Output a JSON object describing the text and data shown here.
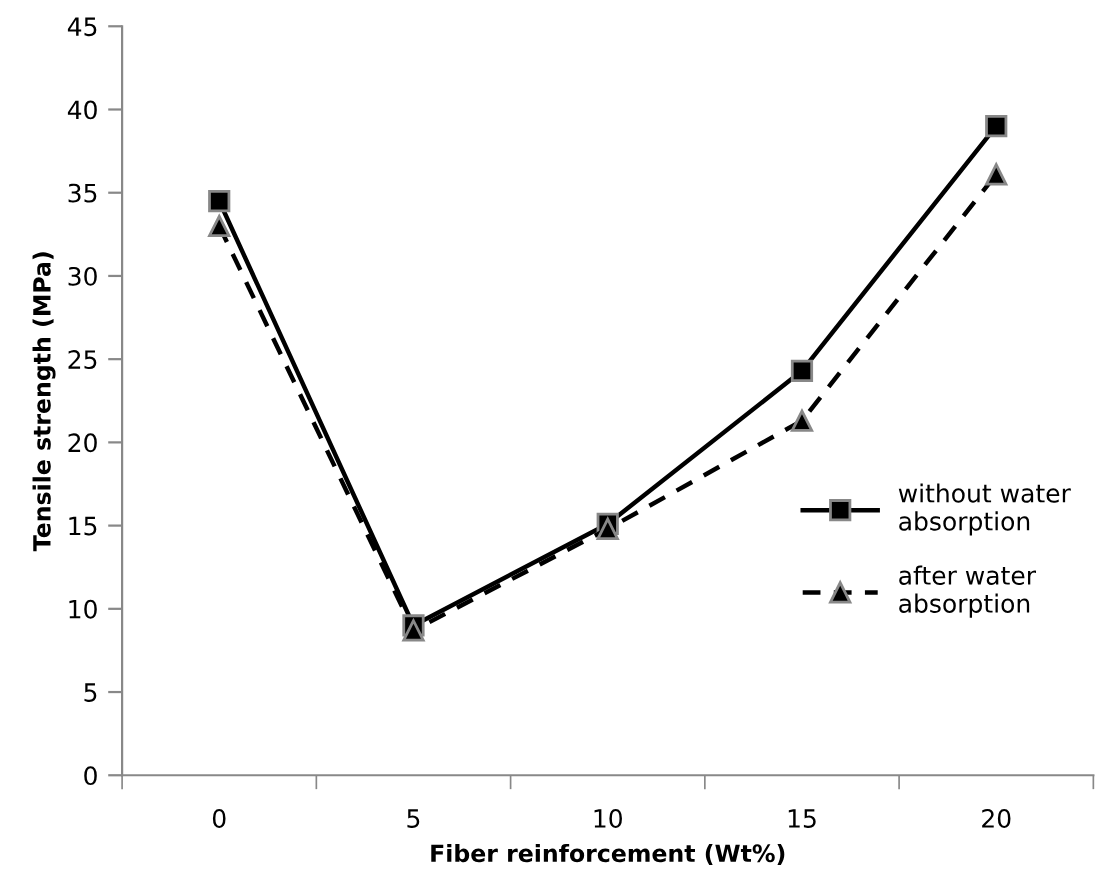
{
  "chart_data": {
    "type": "line",
    "xlabel": "Fiber reinforcement (Wt%)",
    "ylabel": "Tensile strength (MPa)",
    "categories": [
      "0",
      "5",
      "10",
      "15",
      "20"
    ],
    "series": [
      {
        "name": "without water\nabsorption",
        "color": "#000000",
        "marker": "square",
        "line_style": "solid",
        "values": [
          34.5,
          9.0,
          15.1,
          24.3,
          39.0
        ]
      },
      {
        "name": "after water\nabsorption",
        "color": "#000000",
        "marker": "triangle",
        "line_style": "dashed",
        "values": [
          33.0,
          8.7,
          14.8,
          21.3,
          36.1
        ]
      }
    ],
    "ylim": [
      0,
      45
    ],
    "yticks": [
      0,
      5,
      10,
      15,
      20,
      25,
      30,
      35,
      40,
      45
    ],
    "grid": false,
    "legend": "right"
  }
}
